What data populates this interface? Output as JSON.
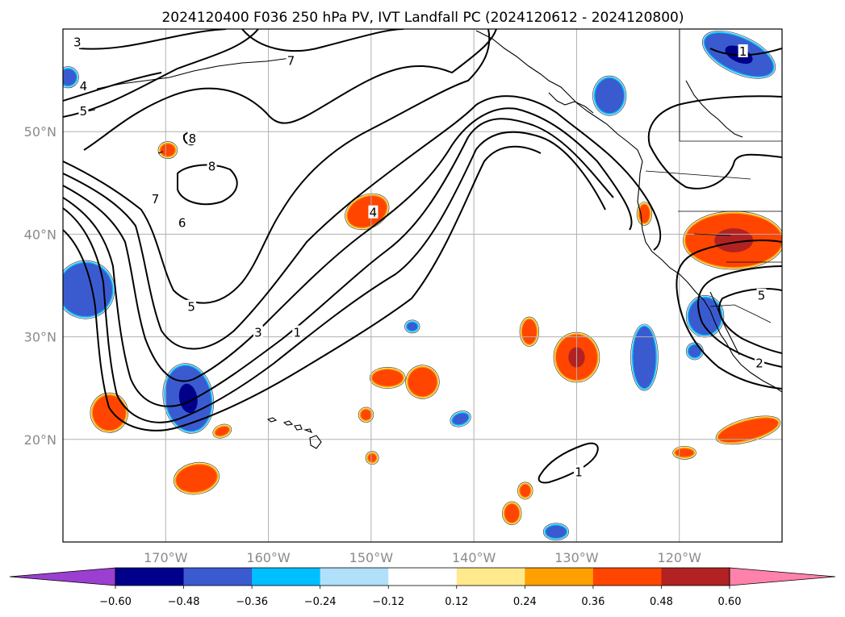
{
  "title": "2024120400 F036 250 hPa PV, IVT Landfall PC (2024120612 - 2024120800)",
  "map": {
    "lon_range": [
      -180,
      -110
    ],
    "lat_range": [
      10,
      60
    ],
    "lon_ticks": [
      {
        "lon": -170,
        "label": "170°W"
      },
      {
        "lon": -160,
        "label": "160°W"
      },
      {
        "lon": -150,
        "label": "150°W"
      },
      {
        "lon": -140,
        "label": "140°W"
      },
      {
        "lon": -130,
        "label": "130°W"
      },
      {
        "lon": -120,
        "label": "120°W"
      }
    ],
    "lat_ticks": [
      {
        "lat": 20,
        "label": "20°N"
      },
      {
        "lat": 30,
        "label": "30°N"
      },
      {
        "lat": 40,
        "label": "40°N"
      },
      {
        "lat": 50,
        "label": "50°N"
      }
    ],
    "grid": true
  },
  "contour_labels": [
    {
      "text": "3",
      "lon": -178.6,
      "lat": 58.7
    },
    {
      "text": "4",
      "lon": -178.0,
      "lat": 54.4
    },
    {
      "text": "5",
      "lon": -178.0,
      "lat": 52.0
    },
    {
      "text": "7",
      "lon": -157.8,
      "lat": 56.9
    },
    {
      "text": "8",
      "lon": -167.4,
      "lat": 49.3
    },
    {
      "text": "8",
      "lon": -165.5,
      "lat": 46.6
    },
    {
      "text": "7",
      "lon": -171.0,
      "lat": 43.4
    },
    {
      "text": "6",
      "lon": -168.4,
      "lat": 41.1
    },
    {
      "text": "4",
      "lon": -149.8,
      "lat": 42.1
    },
    {
      "text": "5",
      "lon": -167.5,
      "lat": 32.9
    },
    {
      "text": "3",
      "lon": -161.0,
      "lat": 30.4
    },
    {
      "text": "1",
      "lon": -157.2,
      "lat": 30.4
    },
    {
      "text": "1",
      "lon": -113.8,
      "lat": 57.8
    },
    {
      "text": "5",
      "lon": -112.0,
      "lat": 34.0
    },
    {
      "text": "2",
      "lon": -112.2,
      "lat": 27.4
    },
    {
      "text": "1",
      "lon": -129.8,
      "lat": 16.8
    }
  ],
  "colorbar": {
    "levels": [
      "−0.60",
      "−0.48",
      "−0.36",
      "−0.24",
      "−0.12",
      "0.12",
      "0.24",
      "0.36",
      "0.48",
      "0.60"
    ],
    "colors": [
      "#9a3fd0",
      "#00008b",
      "#3a5bd0",
      "#00bfff",
      "#b0e0fa",
      "#ffffff",
      "#ffe98c",
      "#ffa000",
      "#ff4500",
      "#b22222",
      "#ff82aa"
    ]
  },
  "ivt_blobs": [
    {
      "lon": -167.8,
      "lat": 24.0,
      "rx": 2.2,
      "ry": 3.2,
      "rot": -10,
      "fill": "#3a5bd0",
      "core": "#00008b"
    },
    {
      "lon": -177.8,
      "lat": 34.6,
      "rx": 2.6,
      "ry": 2.6,
      "rot": 20,
      "fill": "#3a5bd0"
    },
    {
      "lon": -179.5,
      "lat": 55.3,
      "rx": 0.8,
      "ry": 0.8,
      "rot": 0,
      "fill": "#3a5bd0"
    },
    {
      "lon": -123.4,
      "lat": 28.0,
      "rx": 1.1,
      "ry": 3.0,
      "rot": 0,
      "fill": "#3a5bd0"
    },
    {
      "lon": -132.0,
      "lat": 11.0,
      "rx": 1.0,
      "ry": 0.6,
      "rot": 0,
      "fill": "#3a5bd0"
    },
    {
      "lon": -114.2,
      "lat": 57.5,
      "rx": 3.6,
      "ry": 1.6,
      "rot": 25,
      "fill": "#3a5bd0",
      "core": "#00008b"
    },
    {
      "lon": -126.8,
      "lat": 53.5,
      "rx": 1.4,
      "ry": 1.7,
      "rot": 0,
      "fill": "#3a5bd0"
    },
    {
      "lon": -117.5,
      "lat": 32.0,
      "rx": 1.6,
      "ry": 1.8,
      "rot": 0,
      "fill": "#3a5bd0"
    },
    {
      "lon": -118.5,
      "lat": 28.6,
      "rx": 0.6,
      "ry": 0.6,
      "rot": 0,
      "fill": "#3a5bd0"
    },
    {
      "lon": -141.3,
      "lat": 22.0,
      "rx": 0.8,
      "ry": 0.5,
      "rot": -20,
      "fill": "#3a5bd0"
    },
    {
      "lon": -146.0,
      "lat": 31.0,
      "rx": 0.5,
      "ry": 0.4,
      "rot": 0,
      "fill": "#3a5bd0"
    },
    {
      "lon": -175.5,
      "lat": 22.6,
      "rx": 1.6,
      "ry": 1.7,
      "rot": 0,
      "fill": "#ff4500"
    },
    {
      "lon": -167.0,
      "lat": 16.2,
      "rx": 2.0,
      "ry": 1.3,
      "rot": -10,
      "fill": "#ff4500"
    },
    {
      "lon": -169.8,
      "lat": 48.2,
      "rx": 0.7,
      "ry": 0.6,
      "rot": 0,
      "fill": "#ff4500"
    },
    {
      "lon": -150.4,
      "lat": 42.2,
      "rx": 2.0,
      "ry": 1.4,
      "rot": -25,
      "fill": "#ff4500"
    },
    {
      "lon": -148.4,
      "lat": 26.0,
      "rx": 1.5,
      "ry": 0.8,
      "rot": 0,
      "fill": "#ff4500"
    },
    {
      "lon": -145.0,
      "lat": 25.6,
      "rx": 1.4,
      "ry": 1.4,
      "rot": -30,
      "fill": "#ff4500"
    },
    {
      "lon": -150.5,
      "lat": 22.4,
      "rx": 0.5,
      "ry": 0.5,
      "rot": 0,
      "fill": "#ff4500"
    },
    {
      "lon": -149.9,
      "lat": 18.2,
      "rx": 0.4,
      "ry": 0.4,
      "rot": 0,
      "fill": "#ff4500"
    },
    {
      "lon": -164.5,
      "lat": 20.8,
      "rx": 0.7,
      "ry": 0.4,
      "rot": -20,
      "fill": "#ff4500"
    },
    {
      "lon": -134.6,
      "lat": 30.5,
      "rx": 0.7,
      "ry": 1.2,
      "rot": 0,
      "fill": "#ff4500"
    },
    {
      "lon": -130.0,
      "lat": 28.0,
      "rx": 2.0,
      "ry": 2.2,
      "rot": 0,
      "fill": "#ff4500",
      "core": "#b22222"
    },
    {
      "lon": -135.0,
      "lat": 15.0,
      "rx": 0.5,
      "ry": 0.6,
      "rot": 0,
      "fill": "#ff4500"
    },
    {
      "lon": -136.3,
      "lat": 12.8,
      "rx": 0.7,
      "ry": 0.9,
      "rot": 0,
      "fill": "#ff4500"
    },
    {
      "lon": -119.5,
      "lat": 18.7,
      "rx": 0.9,
      "ry": 0.4,
      "rot": 0,
      "fill": "#ff4500"
    },
    {
      "lon": -113.3,
      "lat": 20.9,
      "rx": 3.0,
      "ry": 0.9,
      "rot": -15,
      "fill": "#ff4500"
    },
    {
      "lon": -123.4,
      "lat": 42.0,
      "rx": 0.5,
      "ry": 0.9,
      "rot": 0,
      "fill": "#ff4500"
    },
    {
      "lon": -114.7,
      "lat": 39.4,
      "rx": 4.7,
      "ry": 2.6,
      "rot": 0,
      "fill": "#ff4500",
      "core": "#b22222"
    }
  ]
}
